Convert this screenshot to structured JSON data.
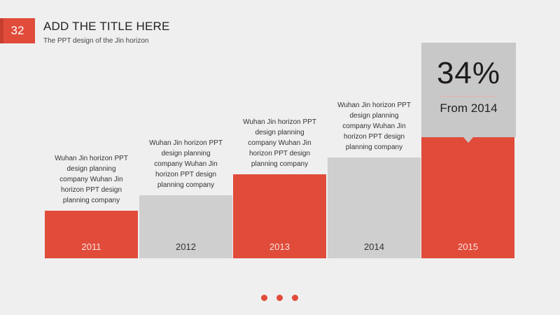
{
  "header": {
    "page_number": "32",
    "title": "ADD THE TITLE HERE",
    "subtitle": "The PPT design of the Jin horizon"
  },
  "colors": {
    "accent": "#e14b3a",
    "gray": "#cfcfcf",
    "background": "#efefef"
  },
  "chart_data": {
    "type": "bar",
    "categories": [
      "2011",
      "2012",
      "2013",
      "2014",
      "2015"
    ],
    "values": [
      68,
      90,
      120,
      144,
      174
    ],
    "ylim": [
      0,
      310
    ],
    "bar_colors": [
      "#e14b3a",
      "#cfcfcf",
      "#e14b3a",
      "#cfcfcf",
      "#e14b3a"
    ],
    "annotations": [
      "Wuhan Jin horizon PPT design planning company Wuhan Jin horizon PPT design planning company",
      "Wuhan Jin horizon PPT design planning company Wuhan Jin horizon PPT design planning company",
      "Wuhan Jin horizon PPT design planning company Wuhan Jin horizon PPT design planning company",
      "Wuhan Jin horizon PPT design planning company Wuhan Jin horizon PPT design planning company"
    ]
  },
  "callout": {
    "value": "34%",
    "label": "From 2014"
  },
  "pagination": {
    "dots": 3
  }
}
